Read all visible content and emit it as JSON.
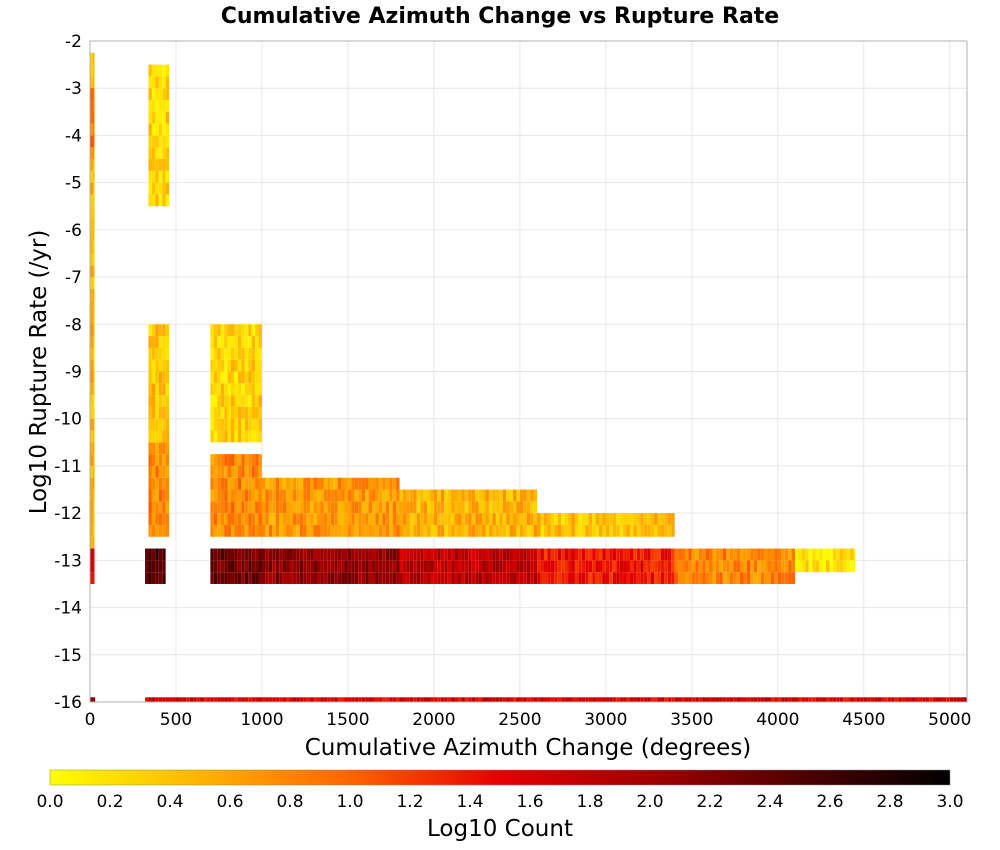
{
  "chart_data": {
    "type": "heatmap",
    "title": "Cumulative Azimuth Change vs Rupture Rate",
    "xlabel": "Cumulative Azimuth Change (degrees)",
    "ylabel": "Log10 Rupture Rate (/yr)",
    "xlim": [
      0,
      5100
    ],
    "ylim": [
      -16,
      -2
    ],
    "x_ticks": [
      "0",
      "500",
      "1000",
      "1500",
      "2000",
      "2500",
      "3000",
      "3500",
      "4000",
      "4500",
      "5000"
    ],
    "y_ticks": [
      "-2",
      "-3",
      "-4",
      "-5",
      "-6",
      "-7",
      "-8",
      "-9",
      "-10",
      "-11",
      "-12",
      "-13",
      "-14",
      "-15",
      "-16"
    ],
    "grid": true,
    "x_bin_width": 20,
    "y_bin_width": 0.25,
    "colorbar": {
      "label": "Log10 Count",
      "range": [
        0.0,
        3.0
      ],
      "ticks": [
        "0.0",
        "0.2",
        "0.4",
        "0.6",
        "0.8",
        "1.0",
        "1.2",
        "1.4",
        "1.6",
        "1.8",
        "2.0",
        "2.2",
        "2.4",
        "2.6",
        "2.8",
        "3.0"
      ],
      "colors": [
        "#ffff00",
        "#ffb400",
        "#ff6400",
        "#e60000",
        "#a00000",
        "#500000",
        "#000000"
      ]
    },
    "regions": [
      {
        "x": [
          0,
          25
        ],
        "y": [
          -13.25,
          -2.25
        ],
        "value": 0.5
      },
      {
        "x": [
          0,
          25
        ],
        "y": [
          -4.5,
          -3
        ],
        "value": 0.9
      },
      {
        "x": [
          0,
          25
        ],
        "y": [
          -13.5,
          -12.75
        ],
        "value": 1.6
      },
      {
        "x": [
          320,
          440
        ],
        "y": [
          -13.5,
          -12.75
        ],
        "value": 2.5
      },
      {
        "x": [
          340,
          460
        ],
        "y": [
          -12.5,
          -10.5
        ],
        "value": 0.8
      },
      {
        "x": [
          340,
          460
        ],
        "y": [
          -10.5,
          -8
        ],
        "value": 0.4
      },
      {
        "x": [
          340,
          460
        ],
        "y": [
          -5.5,
          -2.5
        ],
        "value": 0.3
      },
      {
        "x": [
          700,
          1000
        ],
        "y": [
          -13.5,
          -12.75
        ],
        "value": 2.3
      },
      {
        "x": [
          700,
          1000
        ],
        "y": [
          -12.5,
          -10.75
        ],
        "value": 0.8
      },
      {
        "x": [
          700,
          1000
        ],
        "y": [
          -10.5,
          -8
        ],
        "value": 0.3
      },
      {
        "x": [
          1000,
          1800
        ],
        "y": [
          -13.5,
          -12.75
        ],
        "value": 2.1
      },
      {
        "x": [
          1000,
          1800
        ],
        "y": [
          -12.5,
          -11.25
        ],
        "value": 0.7
      },
      {
        "x": [
          1800,
          2600
        ],
        "y": [
          -13.5,
          -12.75
        ],
        "value": 1.8
      },
      {
        "x": [
          1800,
          2600
        ],
        "y": [
          -12.5,
          -11.5
        ],
        "value": 0.5
      },
      {
        "x": [
          2600,
          3400
        ],
        "y": [
          -13.5,
          -12.75
        ],
        "value": 1.4
      },
      {
        "x": [
          2600,
          3400
        ],
        "y": [
          -12.5,
          -12
        ],
        "value": 0.4
      },
      {
        "x": [
          3400,
          4100
        ],
        "y": [
          -13.5,
          -12.75
        ],
        "value": 0.8
      },
      {
        "x": [
          4100,
          4450
        ],
        "y": [
          -13.25,
          -12.75
        ],
        "value": 0.2
      },
      {
        "x": [
          320,
          5100
        ],
        "y": [
          -16,
          -15.9
        ],
        "value": 1.6
      },
      {
        "x": [
          0,
          30
        ],
        "y": [
          -16,
          -15.9
        ],
        "value": 2.2
      }
    ]
  }
}
